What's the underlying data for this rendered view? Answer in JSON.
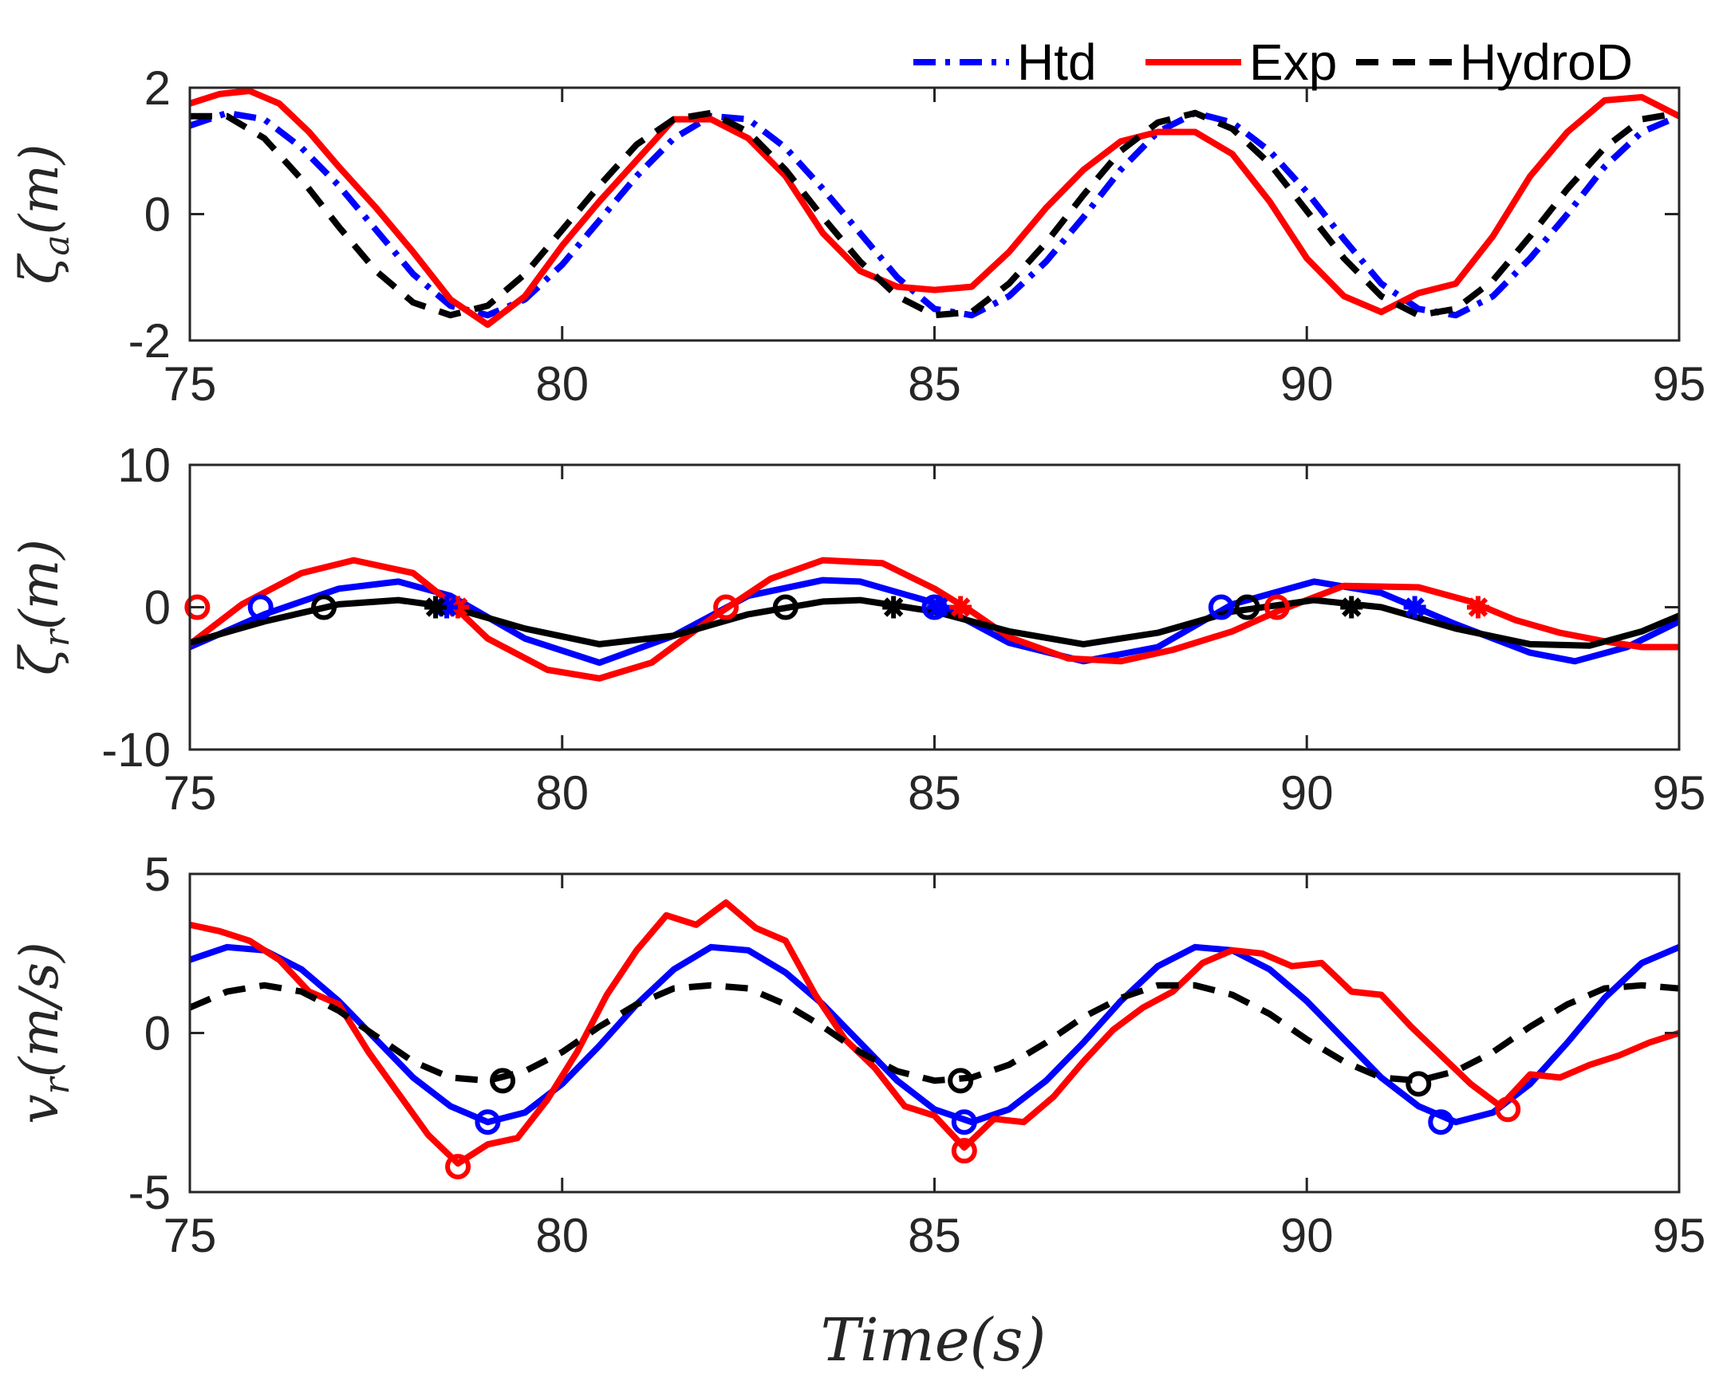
{
  "chart_data": {
    "type": "line",
    "xlabel": "Time(s)",
    "legend": {
      "placement": "top-right",
      "entries": [
        {
          "name": "Htd",
          "color": "#0000ff",
          "style": "dash-dot"
        },
        {
          "name": "Exp",
          "color": "#ff0000",
          "style": "solid"
        },
        {
          "name": "HydroD",
          "color": "#000000",
          "style": "dashed"
        }
      ]
    },
    "panels": [
      {
        "id": "zeta_a",
        "ylabel_main": "ζ",
        "ylabel_sub": "a",
        "ylabel_unit": "(m)",
        "xlim": [
          75,
          95
        ],
        "ylim": [
          -2,
          2
        ],
        "xticks": [
          75,
          80,
          85,
          90,
          95
        ],
        "yticks": [
          -2,
          0,
          2
        ],
        "series": [
          {
            "name": "Htd",
            "color": "#0000ff",
            "style": "dashdot",
            "x": [
              75,
              75.5,
              76,
              76.5,
              77,
              77.5,
              78,
              78.5,
              79,
              79.5,
              80,
              80.5,
              81,
              81.5,
              82,
              82.5,
              83,
              83.5,
              84,
              84.5,
              85,
              85.5,
              86,
              86.5,
              87,
              87.5,
              88,
              88.5,
              89,
              89.5,
              90,
              90.5,
              91,
              91.5,
              92,
              92.5,
              93,
              93.5,
              94,
              94.5,
              95
            ],
            "y": [
              1.4,
              1.6,
              1.5,
              1.05,
              0.45,
              -0.25,
              -0.95,
              -1.45,
              -1.6,
              -1.35,
              -0.8,
              -0.1,
              0.6,
              1.2,
              1.55,
              1.5,
              1.05,
              0.4,
              -0.3,
              -1.0,
              -1.5,
              -1.6,
              -1.3,
              -0.75,
              -0.05,
              0.7,
              1.3,
              1.6,
              1.45,
              1.0,
              0.35,
              -0.4,
              -1.1,
              -1.5,
              -1.6,
              -1.3,
              -0.7,
              0.0,
              0.75,
              1.3,
              1.55
            ]
          },
          {
            "name": "Exp",
            "color": "#ff0000",
            "style": "solid",
            "x": [
              75,
              75.4,
              75.8,
              76.2,
              76.6,
              77,
              77.5,
              78,
              78.5,
              79,
              79.5,
              80,
              80.5,
              81,
              81.5,
              82,
              82.5,
              83,
              83.5,
              84,
              84.5,
              85,
              85.5,
              86,
              86.5,
              87,
              87.5,
              88,
              88.5,
              89,
              89.5,
              90,
              90.5,
              91,
              91.5,
              92,
              92.5,
              93,
              93.5,
              94,
              94.5,
              95
            ],
            "y": [
              1.75,
              1.9,
              1.95,
              1.75,
              1.3,
              0.75,
              0.1,
              -0.6,
              -1.35,
              -1.75,
              -1.3,
              -0.5,
              0.2,
              0.85,
              1.5,
              1.5,
              1.2,
              0.6,
              -0.3,
              -0.9,
              -1.15,
              -1.2,
              -1.15,
              -0.6,
              0.1,
              0.7,
              1.15,
              1.3,
              1.3,
              0.95,
              0.2,
              -0.7,
              -1.3,
              -1.55,
              -1.25,
              -1.1,
              -0.35,
              0.6,
              1.3,
              1.8,
              1.85,
              1.55
            ]
          },
          {
            "name": "HydroD",
            "color": "#000000",
            "style": "dashed",
            "x": [
              75,
              75.5,
              76,
              76.5,
              77,
              77.5,
              78,
              78.5,
              79,
              79.5,
              80,
              80.5,
              81,
              81.5,
              82,
              82.5,
              83,
              83.5,
              84,
              84.5,
              85,
              85.5,
              86,
              86.5,
              87,
              87.5,
              88,
              88.5,
              89,
              89.5,
              90,
              90.5,
              91,
              91.5,
              92,
              92.5,
              93,
              93.5,
              94,
              94.5,
              95
            ],
            "y": [
              1.55,
              1.55,
              1.2,
              0.55,
              -0.2,
              -0.9,
              -1.4,
              -1.6,
              -1.45,
              -0.95,
              -0.25,
              0.45,
              1.1,
              1.5,
              1.6,
              1.3,
              0.7,
              -0.05,
              -0.75,
              -1.3,
              -1.6,
              -1.55,
              -1.1,
              -0.45,
              0.3,
              1.0,
              1.45,
              1.6,
              1.35,
              0.8,
              0.05,
              -0.7,
              -1.3,
              -1.6,
              -1.5,
              -1.05,
              -0.35,
              0.4,
              1.05,
              1.5,
              1.6
            ]
          }
        ]
      },
      {
        "id": "zeta_r",
        "ylabel_main": "ζ",
        "ylabel_sub": "r",
        "ylabel_unit": "(m)",
        "xlim": [
          75,
          95
        ],
        "ylim": [
          -10,
          10
        ],
        "xticks": [
          75,
          80,
          85,
          90,
          95
        ],
        "yticks": [
          -10,
          0,
          10
        ],
        "series": [
          {
            "name": "Htd",
            "color": "#0000ff",
            "style": "solid",
            "x": [
              75,
              76,
              77,
              77.8,
              78.5,
              79.5,
              80.5,
              81.5,
              82.5,
              83.5,
              84,
              85,
              86,
              87,
              88,
              89,
              90.1,
              91,
              92,
              93,
              93.6,
              94.3,
              95
            ],
            "y": [
              -2.8,
              -0.5,
              1.3,
              1.8,
              0.8,
              -2.2,
              -3.9,
              -2.0,
              0.8,
              1.9,
              1.8,
              0.3,
              -2.5,
              -3.8,
              -2.8,
              0.2,
              1.8,
              1.0,
              -1.2,
              -3.2,
              -3.8,
              -2.8,
              -1.0
            ]
          },
          {
            "name": "Exp",
            "color": "#ff0000",
            "style": "solid",
            "x": [
              75,
              75.7,
              76.5,
              77.2,
              78,
              78.5,
              79,
              79.8,
              80.5,
              81.2,
              82,
              82.8,
              83.5,
              84.3,
              85,
              85.5,
              86,
              86.8,
              87.5,
              88.2,
              89,
              89.6,
              90.5,
              91.5,
              92.2,
              92.8,
              93.4,
              94,
              94.5,
              95
            ],
            "y": [
              -2.6,
              0.2,
              2.4,
              3.3,
              2.4,
              0.3,
              -2.2,
              -4.4,
              -5.0,
              -3.9,
              -0.8,
              2.0,
              3.3,
              3.1,
              1.3,
              -0.3,
              -2.1,
              -3.6,
              -3.8,
              -3.0,
              -1.7,
              -0.3,
              1.5,
              1.4,
              0.4,
              -0.9,
              -1.8,
              -2.4,
              -2.8,
              -2.8
            ]
          },
          {
            "name": "HydroD",
            "color": "#000000",
            "style": "solid",
            "x": [
              75,
              76,
              77,
              77.8,
              78.5,
              79.5,
              80.5,
              81.5,
              82.5,
              83.5,
              84,
              85,
              86,
              87,
              88,
              89,
              90.1,
              91,
              92,
              93,
              93.8,
              94.5,
              95
            ],
            "y": [
              -2.5,
              -1.0,
              0.2,
              0.5,
              0.0,
              -1.5,
              -2.6,
              -2.0,
              -0.5,
              0.4,
              0.5,
              -0.3,
              -1.7,
              -2.6,
              -1.8,
              -0.3,
              0.5,
              0.0,
              -1.5,
              -2.6,
              -2.7,
              -1.7,
              -0.6
            ]
          }
        ],
        "markers": [
          {
            "series": "Exp",
            "shape": "circle",
            "color": "#ff0000",
            "x": [
              75.1,
              82.2,
              89.6
            ],
            "y": [
              0,
              0,
              0
            ]
          },
          {
            "series": "Exp",
            "shape": "star",
            "color": "#ff0000",
            "x": [
              78.6,
              85.35,
              92.3
            ],
            "y": [
              0,
              0,
              0
            ]
          },
          {
            "series": "Htd",
            "shape": "circle",
            "color": "#0000ff",
            "x": [
              75.95,
              85.0,
              88.85
            ],
            "y": [
              0,
              0,
              0
            ]
          },
          {
            "series": "Htd",
            "shape": "star",
            "color": "#0000ff",
            "x": [
              78.45,
              85.05,
              91.45
            ],
            "y": [
              0,
              0,
              0
            ]
          },
          {
            "series": "HydroD",
            "shape": "circle",
            "color": "#000000",
            "x": [
              76.8,
              83.0,
              89.2
            ],
            "y": [
              0,
              0,
              0
            ]
          },
          {
            "series": "HydroD",
            "shape": "star",
            "color": "#000000",
            "x": [
              78.3,
              84.45,
              90.6
            ],
            "y": [
              0,
              0,
              0
            ]
          }
        ]
      },
      {
        "id": "v_r",
        "ylabel_main": "v",
        "ylabel_sub": "r",
        "ylabel_unit": "(m/s)",
        "xlim": [
          75,
          95
        ],
        "ylim": [
          -5,
          5
        ],
        "xticks": [
          75,
          80,
          85,
          90,
          95
        ],
        "yticks": [
          -5,
          0,
          5
        ],
        "series": [
          {
            "name": "Htd",
            "color": "#0000ff",
            "style": "solid",
            "x": [
              75,
              75.5,
              76,
              76.5,
              77,
              77.5,
              78,
              78.5,
              79,
              79.5,
              80,
              80.5,
              81,
              81.5,
              82,
              82.5,
              83,
              83.5,
              84,
              84.5,
              85,
              85.5,
              86,
              86.5,
              87,
              87.5,
              88,
              88.5,
              89,
              89.5,
              90,
              90.5,
              91,
              91.5,
              92,
              92.5,
              93,
              93.5,
              94,
              94.5,
              95
            ],
            "y": [
              2.3,
              2.7,
              2.6,
              2.0,
              1.0,
              -0.2,
              -1.4,
              -2.3,
              -2.8,
              -2.5,
              -1.6,
              -0.4,
              0.9,
              2.0,
              2.7,
              2.6,
              1.9,
              0.9,
              -0.3,
              -1.5,
              -2.4,
              -2.8,
              -2.4,
              -1.5,
              -0.3,
              1.0,
              2.1,
              2.7,
              2.6,
              2.0,
              1.0,
              -0.2,
              -1.4,
              -2.3,
              -2.8,
              -2.5,
              -1.6,
              -0.3,
              1.1,
              2.2,
              2.7
            ]
          },
          {
            "name": "Exp",
            "color": "#ff0000",
            "style": "solid",
            "x": [
              75,
              75.4,
              75.8,
              76.2,
              76.6,
              77,
              77.4,
              77.8,
              78.2,
              78.6,
              79,
              79.4,
              79.8,
              80.2,
              80.6,
              81,
              81.4,
              81.8,
              82.2,
              82.6,
              83,
              83.4,
              83.8,
              84.2,
              84.6,
              85,
              85.4,
              85.8,
              86.2,
              86.6,
              87,
              87.4,
              87.8,
              88.2,
              88.6,
              89,
              89.4,
              89.8,
              90.2,
              90.6,
              91,
              91.4,
              91.8,
              92.2,
              92.6,
              93,
              93.4,
              93.8,
              94.2,
              94.6,
              95
            ],
            "y": [
              3.4,
              3.2,
              2.9,
              2.3,
              1.3,
              0.9,
              -0.6,
              -1.9,
              -3.2,
              -4.1,
              -3.5,
              -3.3,
              -2.1,
              -0.6,
              1.2,
              2.6,
              3.7,
              3.4,
              4.1,
              3.3,
              2.9,
              1.2,
              -0.2,
              -1.1,
              -2.3,
              -2.6,
              -3.6,
              -2.7,
              -2.8,
              -2.0,
              -0.9,
              0.1,
              0.8,
              1.3,
              2.2,
              2.6,
              2.5,
              2.1,
              2.2,
              1.3,
              1.2,
              0.2,
              -0.7,
              -1.6,
              -2.3,
              -1.3,
              -1.4,
              -1.0,
              -0.7,
              -0.3,
              0.0
            ]
          },
          {
            "name": "HydroD",
            "color": "#000000",
            "style": "dashed",
            "x": [
              75,
              75.5,
              76,
              76.5,
              77,
              77.5,
              78,
              78.5,
              79,
              79.5,
              80,
              80.5,
              81,
              81.5,
              82,
              82.5,
              83,
              83.5,
              84,
              84.5,
              85,
              85.5,
              86,
              86.5,
              87,
              87.5,
              88,
              88.5,
              89,
              89.5,
              90,
              90.5,
              91,
              91.5,
              92,
              92.5,
              93,
              93.5,
              94,
              94.5,
              95
            ],
            "y": [
              0.8,
              1.3,
              1.5,
              1.3,
              0.7,
              -0.1,
              -0.9,
              -1.4,
              -1.5,
              -1.2,
              -0.6,
              0.2,
              0.9,
              1.4,
              1.5,
              1.4,
              0.9,
              0.2,
              -0.6,
              -1.2,
              -1.5,
              -1.4,
              -1.0,
              -0.3,
              0.5,
              1.1,
              1.5,
              1.5,
              1.2,
              0.6,
              -0.2,
              -0.9,
              -1.4,
              -1.5,
              -1.2,
              -0.6,
              0.2,
              0.9,
              1.4,
              1.5,
              1.4
            ]
          }
        ],
        "markers": [
          {
            "series": "Exp",
            "shape": "circle",
            "color": "#ff0000",
            "x": [
              78.6,
              85.4,
              92.7
            ],
            "y": [
              -4.2,
              -3.7,
              -2.4
            ]
          },
          {
            "series": "Htd",
            "shape": "circle",
            "color": "#0000ff",
            "x": [
              79.0,
              85.4,
              91.8
            ],
            "y": [
              -2.8,
              -2.8,
              -2.8
            ]
          },
          {
            "series": "HydroD",
            "shape": "circle",
            "color": "#000000",
            "x": [
              79.2,
              85.35,
              91.5
            ],
            "y": [
              -1.5,
              -1.5,
              -1.6
            ]
          }
        ]
      }
    ]
  }
}
